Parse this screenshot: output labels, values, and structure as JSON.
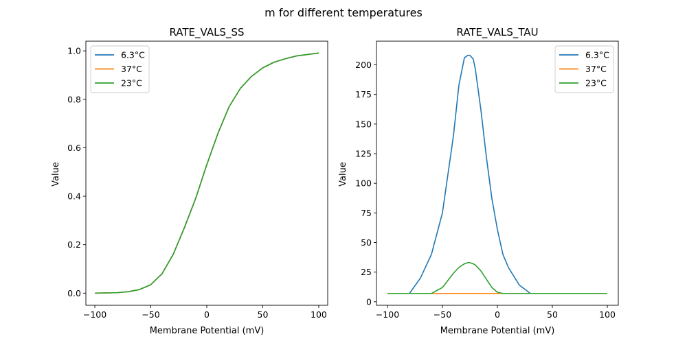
{
  "figure": {
    "suptitle": "m for different temperatures"
  },
  "colors": {
    "series_1": "#1f77b4",
    "series_2": "#ff7f0e",
    "series_3": "#2ca02c"
  },
  "chart_data": [
    {
      "type": "line",
      "title": "RATE_VALS_SS",
      "xlabel": "Membrane Potential (mV)",
      "ylabel": "Value",
      "xlim": [
        -108,
        108
      ],
      "ylim": [
        -0.05,
        1.04
      ],
      "xticks": [
        -100,
        -50,
        0,
        50,
        100
      ],
      "xtick_labels": [
        "−100",
        "−50",
        "0",
        "50",
        "100"
      ],
      "yticks": [
        0.0,
        0.2,
        0.4,
        0.6,
        0.8,
        1.0
      ],
      "ytick_labels": [
        "0.0",
        "0.2",
        "0.4",
        "0.6",
        "0.8",
        "1.0"
      ],
      "legend": "upper-left",
      "x": [
        -100,
        -90,
        -80,
        -70,
        -60,
        -50,
        -40,
        -30,
        -20,
        -10,
        0,
        10,
        20,
        30,
        40,
        50,
        60,
        70,
        80,
        90,
        100
      ],
      "series": [
        {
          "name": "6.3°C",
          "color": "#1f77b4",
          "values": [
            0.0,
            0.001,
            0.002,
            0.006,
            0.015,
            0.035,
            0.08,
            0.16,
            0.27,
            0.39,
            0.53,
            0.66,
            0.77,
            0.845,
            0.895,
            0.93,
            0.953,
            0.967,
            0.979,
            0.985,
            0.991
          ]
        },
        {
          "name": "37°C",
          "color": "#ff7f0e",
          "values": [
            0.0,
            0.001,
            0.002,
            0.006,
            0.015,
            0.035,
            0.08,
            0.16,
            0.27,
            0.39,
            0.53,
            0.66,
            0.77,
            0.845,
            0.895,
            0.93,
            0.953,
            0.967,
            0.979,
            0.985,
            0.991
          ]
        },
        {
          "name": "23°C",
          "color": "#2ca02c",
          "values": [
            0.0,
            0.001,
            0.002,
            0.006,
            0.015,
            0.035,
            0.08,
            0.16,
            0.27,
            0.39,
            0.53,
            0.66,
            0.77,
            0.845,
            0.895,
            0.93,
            0.953,
            0.967,
            0.979,
            0.985,
            0.991
          ]
        }
      ]
    },
    {
      "type": "line",
      "title": "RATE_VALS_TAU",
      "xlabel": "Membrane Potential (mV)",
      "ylabel": "Value",
      "xlim": [
        -110,
        110
      ],
      "ylim": [
        -3,
        220
      ],
      "xticks": [
        -100,
        -50,
        0,
        50,
        100
      ],
      "xtick_labels": [
        "−100",
        "−50",
        "0",
        "50",
        "100"
      ],
      "yticks": [
        0,
        25,
        50,
        75,
        100,
        125,
        150,
        175,
        200
      ],
      "ytick_labels": [
        "0",
        "25",
        "50",
        "75",
        "100",
        "125",
        "150",
        "175",
        "200"
      ],
      "legend": "upper-right",
      "x": [
        -100,
        -80,
        -70,
        -60,
        -50,
        -40,
        -35,
        -30,
        -27,
        -25,
        -22,
        -20,
        -15,
        -10,
        -5,
        0,
        5,
        10,
        20,
        30,
        40,
        100
      ],
      "series": [
        {
          "name": "6.3°C",
          "color": "#1f77b4",
          "values": [
            7,
            7,
            20,
            40,
            75,
            140,
            183,
            206,
            208,
            208,
            205,
            196,
            162,
            122,
            87,
            61,
            40,
            29,
            14,
            7,
            7,
            7
          ]
        },
        {
          "name": "37°C",
          "color": "#ff7f0e",
          "values": [
            7,
            7,
            7,
            7,
            7,
            7,
            7,
            7,
            7,
            7,
            7,
            7,
            7,
            7,
            7,
            7,
            7,
            7,
            7,
            7,
            7,
            7
          ]
        },
        {
          "name": "23°C",
          "color": "#2ca02c",
          "values": [
            7,
            7,
            7,
            7,
            12,
            24,
            29,
            32,
            33,
            33,
            32,
            31,
            26,
            19,
            12,
            8,
            7,
            7,
            7,
            7,
            7,
            7
          ]
        }
      ]
    }
  ]
}
